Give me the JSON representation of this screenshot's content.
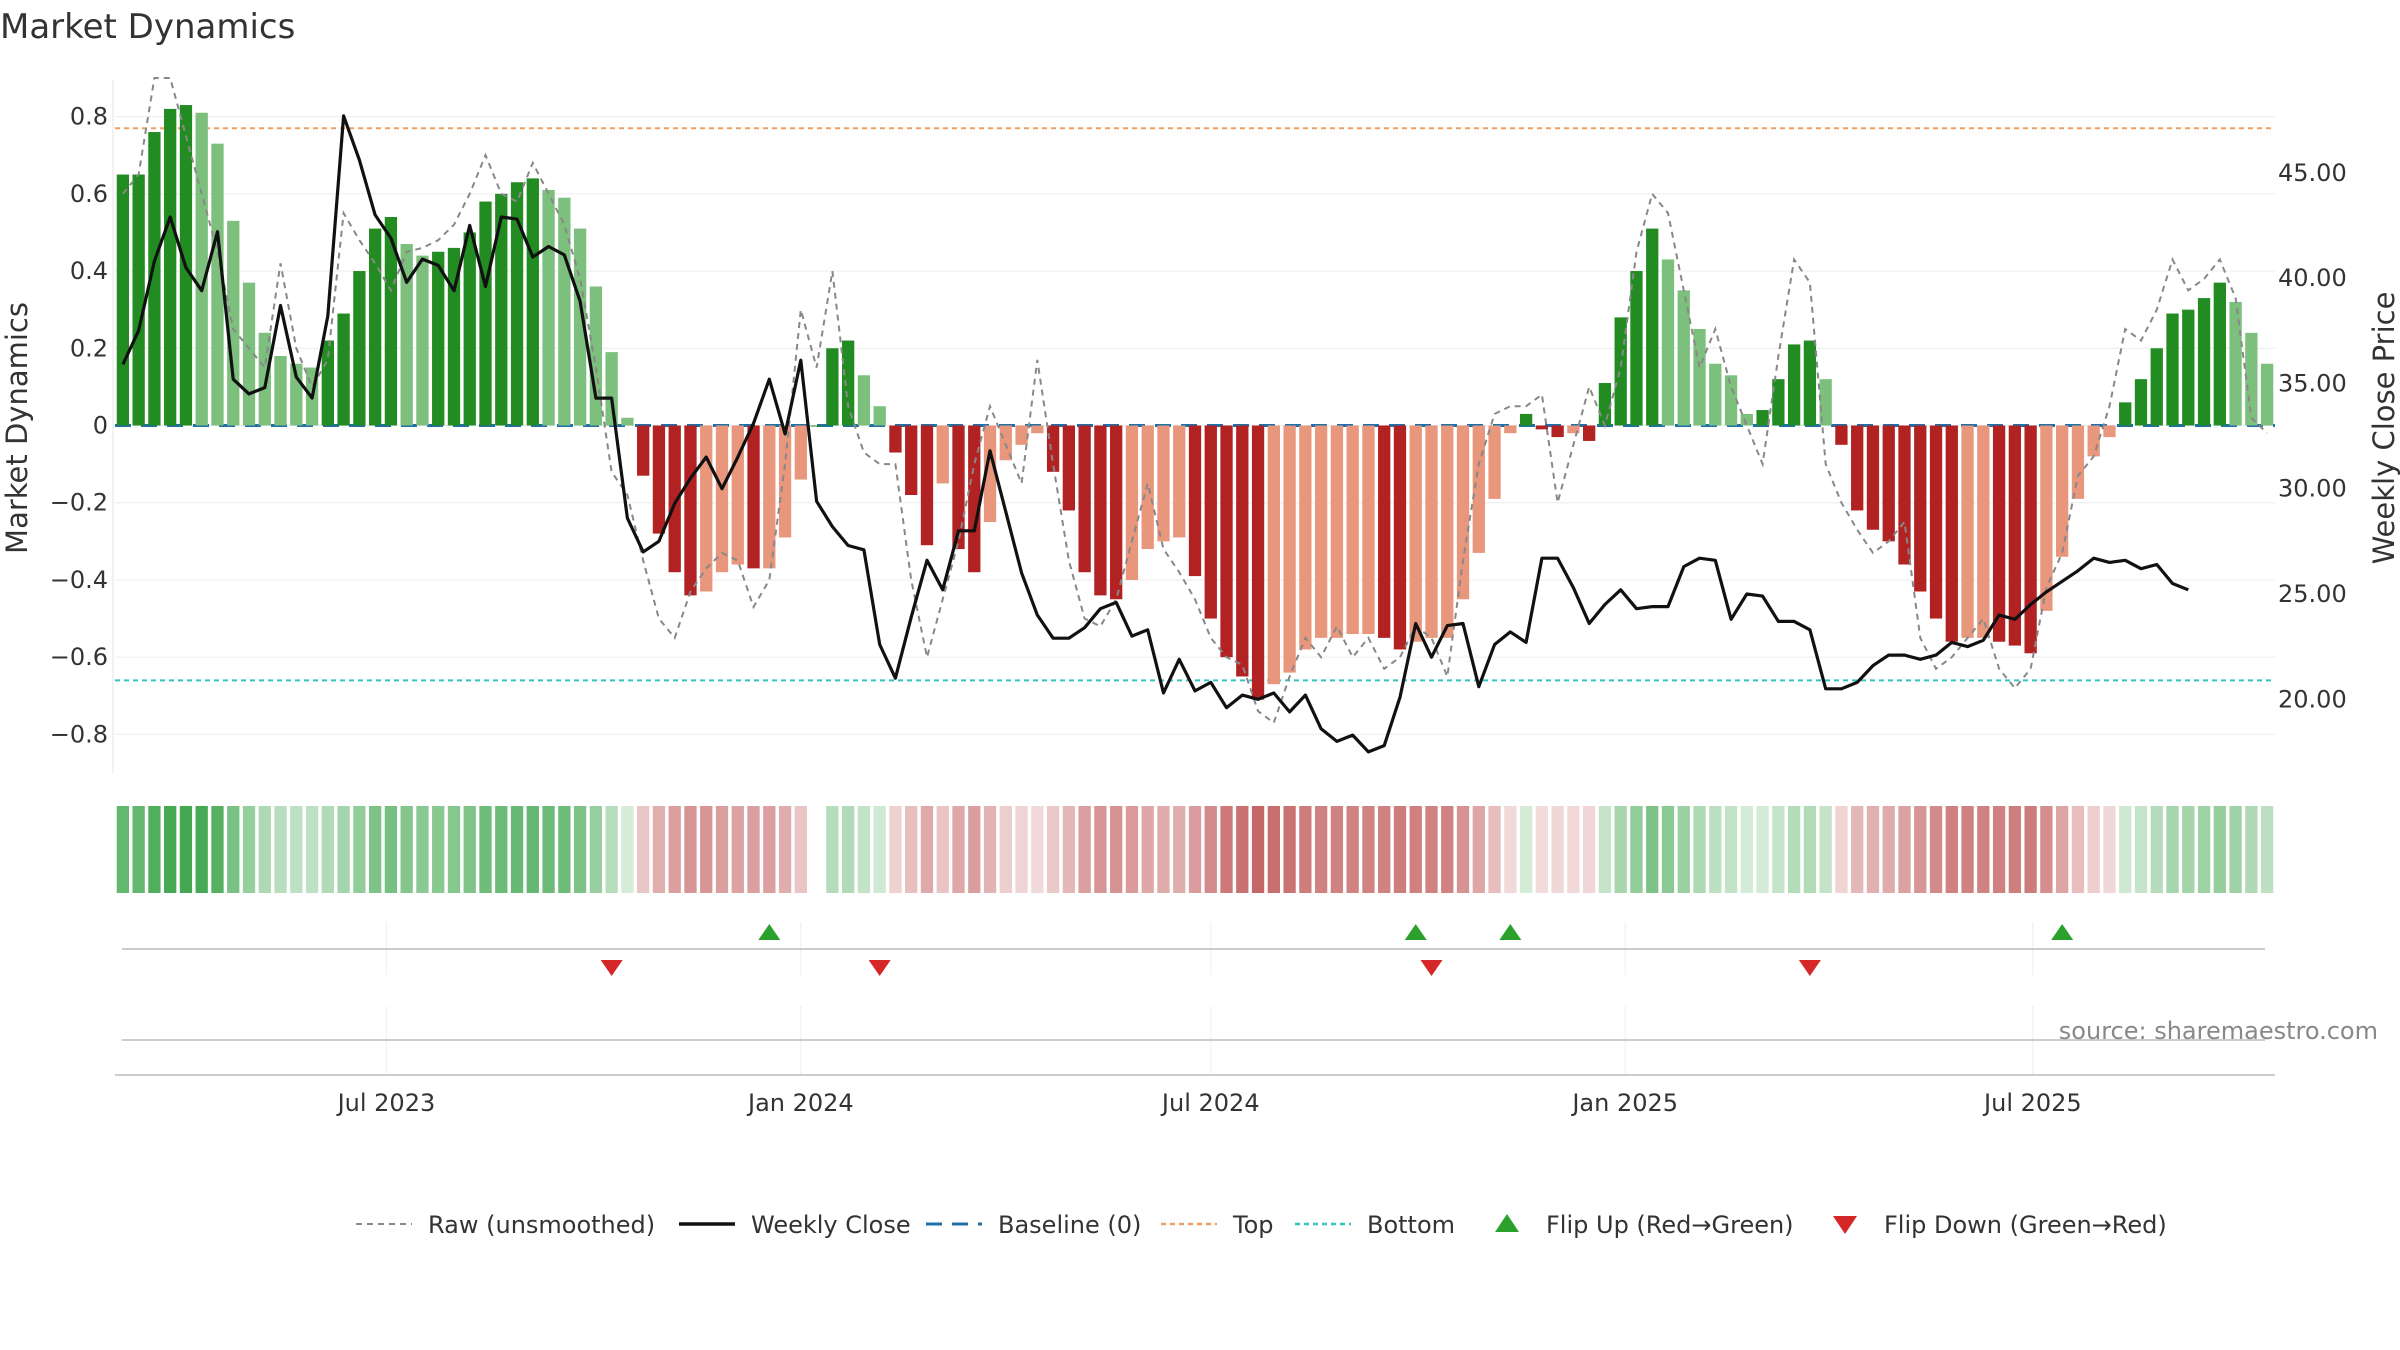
{
  "title": "Market Dynamics",
  "source": "source: sharemaestro.com",
  "chart_data": {
    "type": "bar",
    "title": "Market Dynamics",
    "left_axis": {
      "label": "Market Dynamics",
      "ylim": [
        -0.9,
        0.9
      ],
      "ticks": [
        0.8,
        0.6,
        0.4,
        0.2,
        0,
        -0.2,
        -0.4,
        -0.6,
        -0.8
      ],
      "tick_labels": [
        "0.8",
        "0.6",
        "0.4",
        "0.2",
        "0",
        "−0.2",
        "−0.4",
        "−0.6",
        "−0.8"
      ]
    },
    "right_axis": {
      "label": "Weekly Close Price",
      "ylim": [
        16.5,
        49.5
      ],
      "ticks": [
        45,
        40,
        35,
        30,
        25,
        20
      ],
      "tick_labels": [
        "45.00",
        "40.00",
        "35.00",
        "30.00",
        "25.00",
        "20.00"
      ]
    },
    "x_axis": {
      "start": "2023-03-06",
      "end": "2025-09-15",
      "ticks": [
        "2023-07-01",
        "2024-01-01",
        "2024-07-01",
        "2025-01-01",
        "2025-07-01"
      ],
      "tick_labels": [
        "Jul 2023",
        "Jan 2024",
        "Jul 2024",
        "Jan 2025",
        "Jul 2025"
      ]
    },
    "reference_lines": {
      "baseline": 0,
      "top": 0.77,
      "bottom": -0.66
    },
    "dynamics": [
      0.65,
      0.65,
      0.76,
      0.82,
      0.83,
      0.81,
      0.73,
      0.53,
      0.37,
      0.24,
      0.18,
      0.16,
      0.15,
      0.22,
      0.29,
      0.4,
      0.51,
      0.54,
      0.47,
      0.44,
      0.45,
      0.46,
      0.5,
      0.58,
      0.6,
      0.63,
      0.64,
      0.61,
      0.59,
      0.51,
      0.36,
      0.19,
      0.02,
      -0.13,
      -0.28,
      -0.38,
      -0.44,
      -0.43,
      -0.38,
      -0.36,
      -0.37,
      -0.37,
      -0.29,
      -0.14,
      0,
      0.2,
      0.22,
      0.13,
      0.05,
      -0.07,
      -0.18,
      -0.31,
      -0.15,
      -0.32,
      -0.38,
      -0.25,
      -0.09,
      -0.05,
      -0.02,
      -0.12,
      -0.22,
      -0.38,
      -0.44,
      -0.45,
      -0.4,
      -0.32,
      -0.3,
      -0.29,
      -0.39,
      -0.5,
      -0.6,
      -0.65,
      -0.71,
      -0.67,
      -0.64,
      -0.58,
      -0.55,
      -0.55,
      -0.54,
      -0.54,
      -0.55,
      -0.58,
      -0.56,
      -0.55,
      -0.55,
      -0.45,
      -0.33,
      -0.19,
      -0.02,
      0.03,
      -0.01,
      -0.03,
      -0.02,
      -0.04,
      0.11,
      0.28,
      0.4,
      0.51,
      0.43,
      0.35,
      0.25,
      0.16,
      0.13,
      0.03,
      0.04,
      0.12,
      0.21,
      0.22,
      0.12,
      -0.05,
      -0.22,
      -0.27,
      -0.3,
      -0.36,
      -0.43,
      -0.5,
      -0.56,
      -0.55,
      -0.55,
      -0.56,
      -0.57,
      -0.59,
      -0.48,
      -0.34,
      -0.19,
      -0.08,
      -0.03,
      0.06,
      0.12,
      0.2,
      0.29,
      0.3,
      0.33,
      0.37,
      0.32,
      0.24,
      0.16
    ],
    "raw": [
      0.6,
      0.65,
      0.9,
      0.92,
      0.75,
      0.6,
      0.45,
      0.25,
      0.2,
      0.15,
      0.42,
      0.2,
      0.1,
      0.17,
      0.55,
      0.48,
      0.42,
      0.35,
      0.45,
      0.46,
      0.48,
      0.52,
      0.6,
      0.7,
      0.6,
      0.58,
      0.68,
      0.6,
      0.52,
      0.38,
      0.15,
      -0.12,
      -0.18,
      -0.35,
      -0.5,
      -0.55,
      -0.43,
      -0.37,
      -0.33,
      -0.35,
      -0.47,
      -0.4,
      -0.1,
      0.3,
      0.15,
      0.4,
      0.05,
      -0.07,
      -0.1,
      -0.1,
      -0.4,
      -0.6,
      -0.45,
      -0.3,
      -0.1,
      0.05,
      -0.05,
      -0.15,
      0.17,
      -0.1,
      -0.35,
      -0.5,
      -0.52,
      -0.45,
      -0.3,
      -0.15,
      -0.32,
      -0.38,
      -0.45,
      -0.55,
      -0.6,
      -0.62,
      -0.74,
      -0.77,
      -0.65,
      -0.55,
      -0.6,
      -0.52,
      -0.6,
      -0.55,
      -0.63,
      -0.6,
      -0.52,
      -0.55,
      -0.65,
      -0.35,
      -0.1,
      0.03,
      0.05,
      0.05,
      0.08,
      -0.2,
      -0.05,
      0.1,
      0.0,
      0.15,
      0.45,
      0.6,
      0.55,
      0.35,
      0.15,
      0.25,
      0.1,
      0.0,
      -0.1,
      0.18,
      0.43,
      0.37,
      -0.1,
      -0.2,
      -0.27,
      -0.33,
      -0.3,
      -0.25,
      -0.55,
      -0.63,
      -0.6,
      -0.55,
      -0.5,
      -0.63,
      -0.68,
      -0.63,
      -0.42,
      -0.33,
      -0.13,
      -0.08,
      0.05,
      0.25,
      0.22,
      0.3,
      0.43,
      0.35,
      0.38,
      0.43,
      0.33,
      0.02,
      -0.02
    ],
    "weekly_close": [
      35.9,
      37.5,
      40.8,
      42.9,
      40.5,
      39.4,
      42.2,
      35.2,
      34.5,
      34.8,
      38.7,
      35.3,
      34.3,
      38.2,
      47.7,
      45.6,
      43.0,
      41.9,
      39.8,
      40.9,
      40.6,
      39.4,
      42.5,
      39.6,
      42.9,
      42.8,
      41.0,
      41.5,
      41.1,
      38.9,
      34.3,
      34.3,
      28.6,
      27.0,
      27.5,
      29.3,
      30.5,
      31.5,
      30.0,
      31.5,
      33.1,
      35.2,
      32.6,
      36.1,
      29.4,
      28.2,
      27.3,
      27.1,
      22.6,
      21.0,
      23.9,
      26.6,
      25.2,
      28.0,
      28.0,
      31.8,
      28.9,
      26.0,
      24.0,
      22.9,
      22.9,
      23.4,
      24.3,
      24.6,
      23.0,
      23.3,
      20.3,
      21.9,
      20.4,
      20.8,
      19.6,
      20.2,
      20.0,
      20.3,
      19.4,
      20.2,
      18.6,
      18.0,
      18.3,
      17.5,
      17.8,
      20.1,
      23.6,
      22.0,
      23.5,
      23.6,
      20.6,
      22.6,
      23.2,
      22.7,
      26.7,
      26.7,
      25.3,
      23.6,
      24.5,
      25.2,
      24.3,
      24.4,
      24.4,
      26.3,
      26.7,
      26.6,
      23.8,
      25.0,
      24.9,
      23.7,
      23.7,
      23.3,
      20.5,
      20.5,
      20.8,
      21.6,
      22.1,
      22.1,
      21.9,
      22.1,
      22.7,
      22.5,
      22.8,
      24.0,
      23.8,
      24.5,
      25.1,
      25.6,
      26.1,
      26.7,
      26.5,
      26.6,
      26.2,
      26.4,
      25.5,
      25.2
    ],
    "flip_up": [
      "2023-12-18",
      "2024-09-30",
      "2024-11-11",
      "2025-07-14"
    ],
    "flip_down": [
      "2023-10-09",
      "2024-02-05",
      "2024-10-07",
      "2025-03-24"
    ],
    "legend": {
      "placement": "bottom-center",
      "entries": [
        "Raw (unsmoothed)",
        "Weekly Close",
        "Baseline (0)",
        "Top",
        "Bottom",
        "Flip Up (Red→Green)",
        "Flip Down (Green→Red)"
      ]
    }
  },
  "colors": {
    "strong_green": "#228b22",
    "light_green": "#7dbf7d",
    "strong_red": "#b22222",
    "light_red": "#e8977c",
    "price_line": "#111111",
    "raw_line": "#888888",
    "baseline": "#1f6fa8",
    "top_line": "#f0a060",
    "bottom_line": "#33c4c4",
    "flip_up": "#2ca02c",
    "flip_down": "#d62728"
  }
}
